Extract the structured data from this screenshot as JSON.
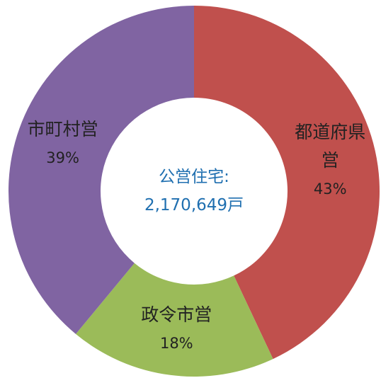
{
  "chart_data": {
    "type": "donut",
    "categories": [
      "都道府県営",
      "政令市営",
      "市町村営"
    ],
    "values": [
      43,
      18,
      39
    ],
    "value_labels": [
      "43%",
      "18%",
      "39%"
    ],
    "colors": [
      "#c0504d",
      "#9bbb59",
      "#8064a2"
    ],
    "center_text": [
      "公営住宅:",
      "2,170,649戸"
    ]
  }
}
